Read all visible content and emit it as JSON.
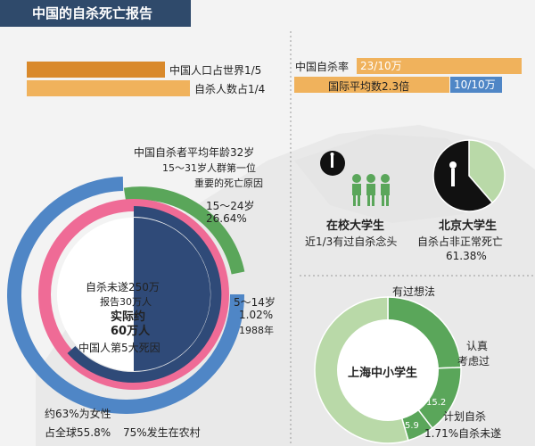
{
  "header": {
    "title": "中国的自杀死亡报告"
  },
  "top_left": {
    "population_share": "中国人口占世界1/5",
    "suicide_share": "自杀人数占1/4"
  },
  "top_right": {
    "china_rate_label": "中国自杀率",
    "china_rate_value": "23/10万",
    "intl_label": "国际平均数2.3倍",
    "intl_value": "10/10万"
  },
  "avg_age": {
    "line1": "中国自杀者平均年龄32岁",
    "line2": "15～31岁人群第一位",
    "line3": "重要的死亡原因"
  },
  "age_15_24": {
    "range": "15～24岁",
    "percent": "26.64%"
  },
  "age_5_14": {
    "range": "5～14岁",
    "percent": "1.02%",
    "year": "1988年"
  },
  "donut_center": {
    "attempted": "自杀未遂250万",
    "reported": "报告30万人",
    "actual_line1": "实际约",
    "actual_line2": "60万人",
    "rank": "中国人第5大死因"
  },
  "donut_bottom": {
    "female": "约63%为女性",
    "global_share": "占全球55.8%",
    "rural": "75%发生在农村"
  },
  "college": {
    "title": "在校大学生",
    "desc": "近1/3有过自杀念头"
  },
  "pku": {
    "title": "北京大学生",
    "desc": "自杀占非正常死亡",
    "percent": "61.38%"
  },
  "shanghai": {
    "had_thoughts": "有过想法",
    "center_title": "上海中小学生",
    "seriously_line1": "认真",
    "seriously_line2": "考虑过",
    "seriously_value": "15.2",
    "plan_value": "5.9",
    "plan_line1": "计划自杀",
    "plan_line2": "1.71%自杀未遂"
  },
  "colors": {
    "header_bg": "#2f4a6b",
    "orange_dark": "#d9892b",
    "orange_light": "#f0b25c",
    "blue": "#4f86c6",
    "navy": "#2f4a78",
    "green": "#5aa65a",
    "green_light": "#b9d9a8",
    "pink": "#ef6b96",
    "black": "#111111"
  },
  "chart_data": [
    {
      "type": "pie",
      "title": "北京大学生",
      "slices": [
        {
          "label": "自杀占非正常死亡",
          "value": 61.38
        },
        {
          "label": "other",
          "value": 38.62
        }
      ]
    },
    {
      "type": "pie",
      "title": "上海中小学生",
      "slices": [
        {
          "label": "有过想法",
          "value": 24.39
        },
        {
          "label": "认真考虑过",
          "value": 15.2
        },
        {
          "label": "计划自杀",
          "value": 5.9
        }
      ]
    }
  ]
}
